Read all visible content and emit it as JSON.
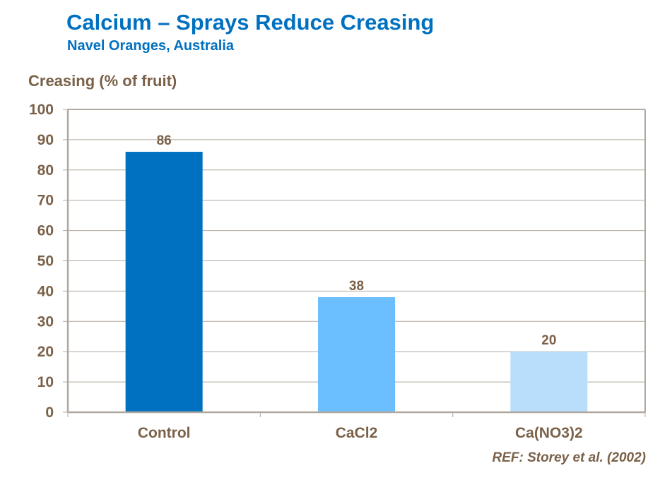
{
  "header": {
    "title": "Calcium – Sprays Reduce Creasing",
    "subtitle": "Navel Oranges, Australia"
  },
  "reference": "REF: Storey et al. (2002)",
  "chart_data": {
    "type": "bar",
    "title": "Calcium – Sprays Reduce Creasing",
    "subtitle": "Navel Oranges, Australia",
    "ylabel": "Creasing (% of fruit)",
    "xlabel": "",
    "categories": [
      "Control",
      "CaCl2",
      "Ca(NO3)2"
    ],
    "values": [
      86,
      38,
      20
    ],
    "bar_colors": [
      "#0070c0",
      "#6bbfff",
      "#b8defc"
    ],
    "ylim": [
      0,
      100
    ],
    "yticks": [
      0,
      10,
      20,
      30,
      40,
      50,
      60,
      70,
      80,
      90,
      100
    ],
    "grid": true,
    "legend": "none",
    "data_labels": true
  }
}
